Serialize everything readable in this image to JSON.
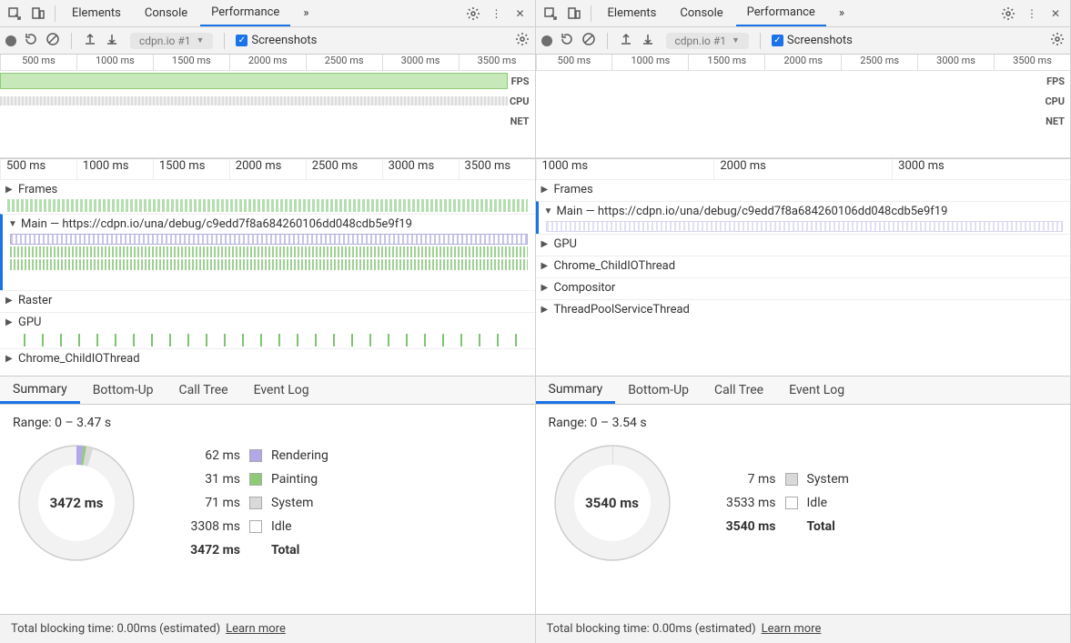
{
  "tabs": {
    "elements": "Elements",
    "console": "Console",
    "performance": "Performance",
    "more": "»"
  },
  "toolbar": {
    "url_badge": "cdpn.io #1",
    "screenshots_label": "Screenshots"
  },
  "overview": {
    "ticks": [
      "500 ms",
      "1000 ms",
      "1500 ms",
      "2000 ms",
      "2500 ms",
      "3000 ms",
      "3500 ms"
    ],
    "lanes": {
      "fps": "FPS",
      "cpu": "CPU",
      "net": "NET"
    }
  },
  "left": {
    "flame_ticks": [
      "500 ms",
      "1000 ms",
      "1500 ms",
      "2000 ms",
      "2500 ms",
      "3000 ms",
      "3500 ms"
    ],
    "tracks": {
      "frames": "Frames",
      "main": "Main — https://cdpn.io/una/debug/c9edd7f8a684260106dd048cdb5e9f19",
      "raster": "Raster",
      "gpu": "GPU",
      "childio": "Chrome_ChildIOThread"
    },
    "summary": {
      "range": "Range: 0 – 3.47 s",
      "center": "3472 ms",
      "rows": [
        {
          "ms": "62 ms",
          "label": "Rendering",
          "color": "#b4a7e8"
        },
        {
          "ms": "31 ms",
          "label": "Painting",
          "color": "#8fcb77"
        },
        {
          "ms": "71 ms",
          "label": "System",
          "color": "#d9d9d9"
        },
        {
          "ms": "3308 ms",
          "label": "Idle",
          "color": "#ffffff"
        }
      ],
      "total_ms": "3472 ms",
      "total_label": "Total",
      "donut": {
        "rendering_deg": 7,
        "painting_deg": 3,
        "system_deg": 7,
        "colors": {
          "rendering": "#b4a7e8",
          "painting": "#8fcb77",
          "system": "#d9d9d9",
          "idle": "#f2f2f2",
          "inner": "#ffffff"
        }
      }
    }
  },
  "right": {
    "flame_ticks": [
      "1000 ms",
      "2000 ms",
      "3000 ms"
    ],
    "tracks": {
      "frames": "Frames",
      "main": "Main — https://cdpn.io/una/debug/c9edd7f8a684260106dd048cdb5e9f19",
      "gpu": "GPU",
      "childio": "Chrome_ChildIOThread",
      "compositor": "Compositor",
      "threadpool": "ThreadPoolServiceThread"
    },
    "summary": {
      "range": "Range: 0 – 3.54 s",
      "center": "3540 ms",
      "rows": [
        {
          "ms": "7 ms",
          "label": "System",
          "color": "#d9d9d9"
        },
        {
          "ms": "3533 ms",
          "label": "Idle",
          "color": "#ffffff"
        }
      ],
      "total_ms": "3540 ms",
      "total_label": "Total",
      "donut": {
        "system_deg": 1,
        "colors": {
          "system": "#d9d9d9",
          "idle": "#f2f2f2",
          "inner": "#ffffff"
        }
      }
    }
  },
  "sum_tabs": {
    "summary": "Summary",
    "bottomup": "Bottom-Up",
    "calltree": "Call Tree",
    "eventlog": "Event Log"
  },
  "footer": {
    "text": "Total blocking time: 0.00ms (estimated)",
    "learn": "Learn more"
  }
}
